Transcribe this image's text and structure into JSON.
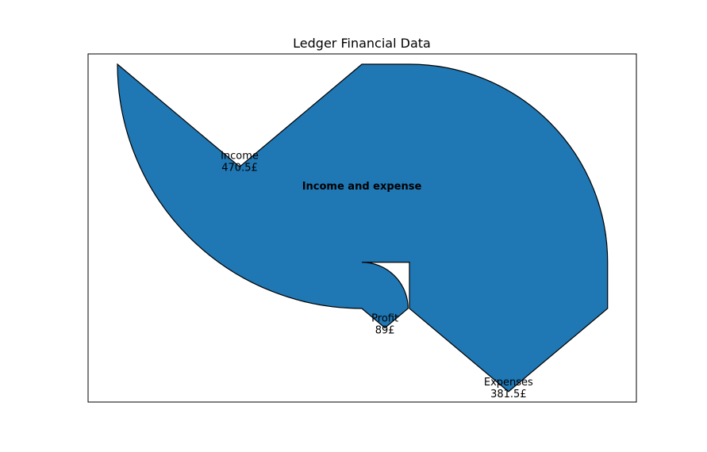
{
  "chart_data": {
    "type": "sankey",
    "title": "Ledger Financial Data",
    "center_label": "Income and expense",
    "categories": [
      "Income",
      "Expenses",
      "Profit"
    ],
    "values": [
      470.5,
      381.5,
      89
    ],
    "value_labels": [
      "470.5£",
      "381.5£",
      "89£"
    ],
    "color": "#1f77b4"
  }
}
